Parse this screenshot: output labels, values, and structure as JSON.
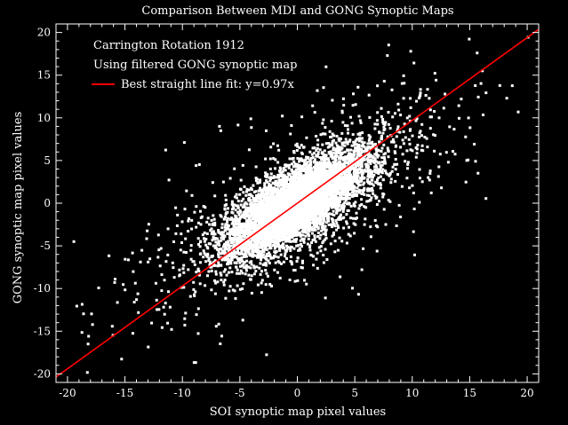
{
  "colors": {
    "background": "#000000",
    "foreground": "#ffffff",
    "fit_line": "#ff0000",
    "points": "#ffffff"
  },
  "chart_data": {
    "type": "scatter",
    "title": "Comparison Between MDI and GONG Synoptic Maps",
    "xlabel": "SOI synoptic map pixel values",
    "ylabel": "GONG synoptic map pixel values",
    "xlim": [
      -21,
      21
    ],
    "ylim": [
      -21,
      21
    ],
    "xticks": [
      -20,
      -15,
      -10,
      -5,
      0,
      5,
      10,
      15,
      20
    ],
    "yticks": [
      -20,
      -15,
      -10,
      -5,
      0,
      5,
      10,
      15,
      20
    ],
    "annotations": [
      "Carrington Rotation 1912",
      "Using filtered GONG synoptic map"
    ],
    "legend": {
      "placement": "top-left",
      "entries": [
        {
          "label": "Best straight line fit: y=0.97x"
        }
      ]
    },
    "fit": {
      "slope": 0.97,
      "intercept": 0
    },
    "points": {
      "description_count": 7000,
      "core_sigma_along": 4.2,
      "core_sigma_across": 1.6,
      "outlier_fraction": 0.12
    },
    "grid": false
  }
}
